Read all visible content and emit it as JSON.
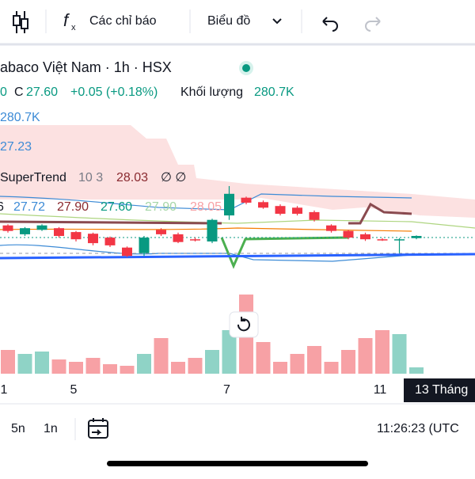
{
  "toolbar": {
    "indicators": "Các chỉ báo",
    "chart_type": "Biểu đồ"
  },
  "legend": {
    "symbol": "abaco Việt Nam · 1h · HSX",
    "open_tail": "0",
    "close_label": "C",
    "close": "27.60",
    "change": "+0.05 (+0.18%)",
    "volume_label": "Khối lượng",
    "volume": "280.7K",
    "vol_ma": "280.7K",
    "ma": "27.23",
    "supertrend_name": "SuperTrend",
    "supertrend_params": "10 3",
    "supertrend_value": "28.03",
    "supertrend_empty": "∅ ∅",
    "ma_row": [
      "6",
      "27.72",
      "27.90",
      "27.60",
      "27.90",
      "28.05"
    ]
  },
  "chart_data": {
    "type": "candlestick",
    "ylim": [
      27.0,
      28.5
    ],
    "colors": {
      "up": "#089981",
      "down": "#f23645",
      "up_volume": "#8fd3c6",
      "down_volume": "#f7a1a5"
    },
    "categories": [
      null,
      null,
      null,
      null,
      null,
      null,
      null,
      null,
      null,
      null,
      null,
      null,
      null,
      null,
      null,
      null,
      null,
      null,
      null,
      null,
      null,
      null,
      null,
      null,
      null
    ],
    "open": [
      27.79,
      27.63,
      27.71,
      27.74,
      27.67,
      27.64,
      27.57,
      27.39,
      27.29,
      27.71,
      27.63,
      27.54,
      27.5,
      27.97,
      28.29,
      28.21,
      28.14,
      28.11,
      28.03,
      27.79,
      27.69,
      27.63,
      27.54,
      27.53,
      27.56
    ],
    "close": [
      27.69,
      27.74,
      27.79,
      27.6,
      27.54,
      27.47,
      27.43,
      27.24,
      27.57,
      27.63,
      27.49,
      27.53,
      27.89,
      28.36,
      28.2,
      28.11,
      28.0,
      28.0,
      27.89,
      27.69,
      27.57,
      27.54,
      27.53,
      27.54,
      27.6
    ],
    "high": [
      27.81,
      27.76,
      27.81,
      27.76,
      27.69,
      27.66,
      27.59,
      27.41,
      27.6,
      27.74,
      27.66,
      27.57,
      27.91,
      28.5,
      28.31,
      28.24,
      28.17,
      28.14,
      28.06,
      27.81,
      27.71,
      27.66,
      27.56,
      27.56,
      27.61
    ],
    "low": [
      27.66,
      27.6,
      27.69,
      27.57,
      27.5,
      27.43,
      27.4,
      27.22,
      27.24,
      27.6,
      27.47,
      27.5,
      27.47,
      27.89,
      28.17,
      28.09,
      27.97,
      27.97,
      27.86,
      27.66,
      27.54,
      27.51,
      27.51,
      27.29,
      27.54
    ],
    "volume": [
      30,
      25,
      28,
      18,
      15,
      20,
      12,
      10,
      25,
      45,
      15,
      20,
      30,
      55,
      100,
      40,
      15,
      25,
      35,
      15,
      30,
      45,
      55,
      50,
      8
    ],
    "volume_lim": [
      0,
      110
    ],
    "x_labels": [
      "1",
      "5",
      "7",
      "11"
    ],
    "crosshair_label": "13 Tháng"
  },
  "bottom": {
    "ranges": [
      "5n",
      "1n"
    ],
    "clock": "11:26:23 (UTC"
  }
}
